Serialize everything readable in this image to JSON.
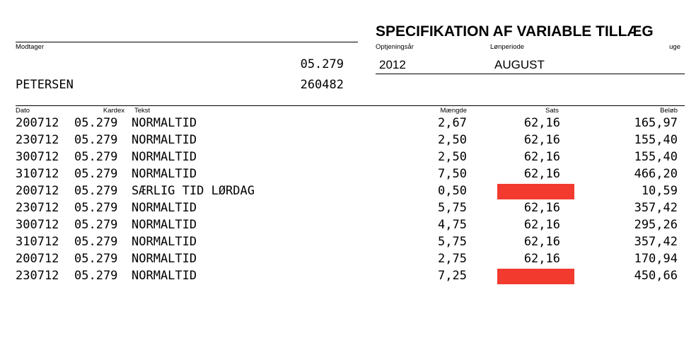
{
  "header": {
    "title": "SPECIFIKATION AF VARIABLE TILLÆG",
    "recipient_label": "Modtager",
    "recipient_code": "05.279",
    "recipient_name": "PETERSEN",
    "recipient_id": "260482",
    "earning_year_label": "Optjeningsår",
    "earning_year": "2012",
    "pay_period_label": "Lønperiode",
    "pay_period": "AUGUST",
    "week_label": "uge"
  },
  "table": {
    "columns": {
      "dato": "Dato",
      "kardex": "Kardex",
      "tekst": "Tekst",
      "maengde": "Mængde",
      "sats": "Sats",
      "belob": "Beløb"
    },
    "rows": [
      {
        "dato": "200712",
        "kardex": "05.279",
        "tekst": "NORMALTID",
        "maengde": "2,67",
        "sats": "62,16",
        "sats_redacted": false,
        "belob": "165,97"
      },
      {
        "dato": "230712",
        "kardex": "05.279",
        "tekst": "NORMALTID",
        "maengde": "2,50",
        "sats": "62,16",
        "sats_redacted": false,
        "belob": "155,40"
      },
      {
        "dato": "300712",
        "kardex": "05.279",
        "tekst": "NORMALTID",
        "maengde": "2,50",
        "sats": "62,16",
        "sats_redacted": false,
        "belob": "155,40"
      },
      {
        "dato": "310712",
        "kardex": "05.279",
        "tekst": "NORMALTID",
        "maengde": "7,50",
        "sats": "62,16",
        "sats_redacted": false,
        "belob": "466,20"
      },
      {
        "dato": "200712",
        "kardex": "05.279",
        "tekst": "SÆRLIG TID LØRDAG",
        "maengde": "0,50",
        "sats": "",
        "sats_redacted": true,
        "belob": "10,59"
      },
      {
        "dato": "230712",
        "kardex": "05.279",
        "tekst": "NORMALTID",
        "maengde": "5,75",
        "sats": "62,16",
        "sats_redacted": false,
        "belob": "357,42"
      },
      {
        "dato": "300712",
        "kardex": "05.279",
        "tekst": "NORMALTID",
        "maengde": "4,75",
        "sats": "62,16",
        "sats_redacted": false,
        "belob": "295,26"
      },
      {
        "dato": "310712",
        "kardex": "05.279",
        "tekst": "NORMALTID",
        "maengde": "5,75",
        "sats": "62,16",
        "sats_redacted": false,
        "belob": "357,42"
      },
      {
        "dato": "200712",
        "kardex": "05.279",
        "tekst": "NORMALTID",
        "maengde": "2,75",
        "sats": "62,16",
        "sats_redacted": false,
        "belob": "170,94"
      },
      {
        "dato": "230712",
        "kardex": "05.279",
        "tekst": "NORMALTID",
        "maengde": "7,25",
        "sats": "",
        "sats_redacted": true,
        "belob": "450,66"
      }
    ]
  },
  "colors": {
    "redaction": "#f33a2f",
    "text": "#000000",
    "background": "#ffffff"
  }
}
